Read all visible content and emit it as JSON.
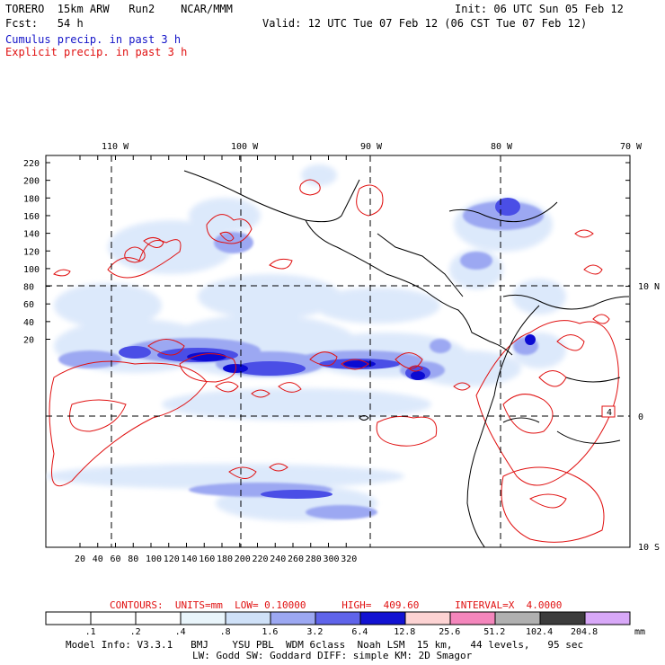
{
  "header": {
    "model": "TORERO  15km ARW   Run2    NCAR/MMM",
    "init": "Init: 06 UTC Sun 05 Feb 12",
    "fcst": "Fcst:   54 h",
    "valid": "Valid: 12 UTC Tue 07 Feb 12 (06 CST Tue 07 Feb 12)",
    "cumulus_label": "Cumulus precip. in past 3 h",
    "explicit_label": "Explicit precip. in past 3 h"
  },
  "map": {
    "lon_labels": [
      "110 W",
      "100 W",
      "90 W",
      "80 W",
      "70 W"
    ],
    "lat_labels": [
      "10 N",
      "0",
      "10 S"
    ],
    "y_ticks": [
      "220",
      "200",
      "180",
      "160",
      "140",
      "120",
      "100",
      "80",
      "60",
      "40",
      "20"
    ],
    "x_ticks": [
      "20",
      "40",
      "60",
      "80",
      "100",
      "120",
      "140",
      "160",
      "180",
      "200",
      "220",
      "240",
      "260",
      "280",
      "300",
      "320"
    ],
    "marker_label": "4",
    "contour_color": "#e01010",
    "precip_colors": [
      "#dbe8fb",
      "#b4c6f5",
      "#7f8cf0",
      "#4a4ee6",
      "#0a0ad2"
    ]
  },
  "contours_info": "CONTOURS:  UNITS=mm  LOW= 0.10000      HIGH=  409.60      INTERVAL=X  4.0000",
  "colorbar": {
    "labels": [
      ".1",
      ".2",
      ".4",
      ".8",
      "1.6",
      "3.2",
      "6.4",
      "12.8",
      "25.6",
      "51.2",
      "102.4",
      "204.8"
    ],
    "unit": "mm",
    "colors": [
      "#ffffff",
      "#ffffff",
      "#ffffff",
      "#e9f5fb",
      "#cfe1f8",
      "#9ca8f2",
      "#5f64ea",
      "#1212d2",
      "#fdd3d3",
      "#f486bc",
      "#b0b0b0",
      "#3c3c3c",
      "#d8a8f8"
    ]
  },
  "footer": {
    "line1": "Model Info: V3.3.1   BMJ    YSU PBL  WDM 6class  Noah LSM  15 km,   44 levels,   95 sec",
    "line2": "LW: Godd SW: Goddard DIFF: simple KM: 2D Smagor"
  }
}
